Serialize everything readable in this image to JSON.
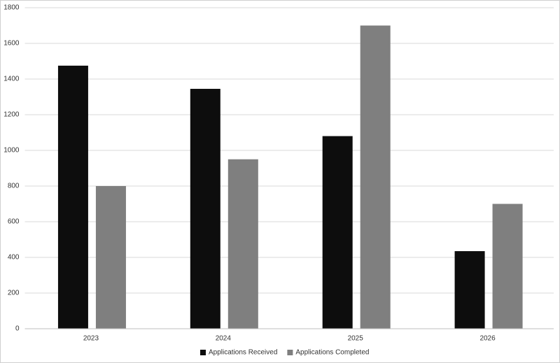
{
  "chart_data": {
    "type": "bar",
    "categories": [
      "2023",
      "2024",
      "2025",
      "2026"
    ],
    "series": [
      {
        "name": "Applications Received",
        "color": "#0d0d0d",
        "values": [
          1475,
          1345,
          1080,
          435
        ]
      },
      {
        "name": "Applications Completed",
        "color": "#7f7f7f",
        "values": [
          800,
          950,
          1700,
          700
        ]
      }
    ],
    "ylim": [
      0,
      1800
    ],
    "yticks": [
      0,
      200,
      400,
      600,
      800,
      1000,
      1200,
      1400,
      1600,
      1800
    ],
    "grid": true,
    "legend": "bottom"
  }
}
